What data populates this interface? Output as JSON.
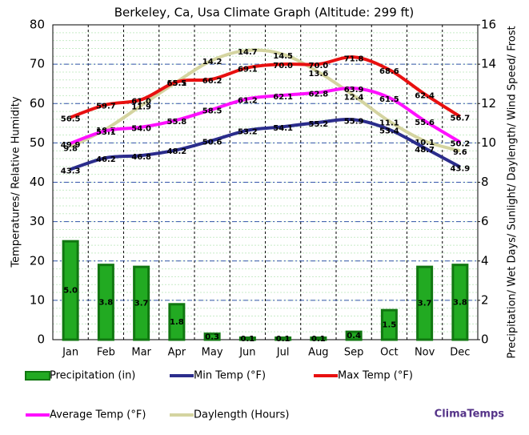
{
  "chart_data": {
    "type": "combo",
    "title": "Berkeley, Ca, Usa Climate Graph (Altitude: 299 ft)",
    "y_label": "Temperatures/ Relative Humidity",
    "y2_label": "Precipitation/ Wet Days/ Sunlight/ Daylength/ Wind Speed/ Frost",
    "source": "ClimaTemps",
    "categories": [
      "Jan",
      "Feb",
      "Mar",
      "Apr",
      "May",
      "Jun",
      "Jul",
      "Aug",
      "Sep",
      "Oct",
      "Nov",
      "Dec"
    ],
    "ylim": [
      0,
      80
    ],
    "yticks": [
      0,
      10,
      20,
      30,
      40,
      50,
      60,
      70,
      80
    ],
    "y2lim": [
      0,
      16
    ],
    "y2ticks": [
      0,
      2,
      4,
      6,
      8,
      10,
      12,
      14,
      16
    ],
    "grid": true,
    "series": [
      {
        "name": "Precipitation (in)",
        "type": "bar",
        "axis": "y2",
        "color": "#22aa22",
        "values": [
          5.0,
          3.8,
          3.7,
          1.8,
          0.3,
          0.1,
          0.1,
          0.1,
          0.4,
          1.5,
          3.7,
          3.8
        ],
        "value_labels": [
          "5.0",
          "3.8",
          "3.7",
          "1.8",
          "0.3",
          "0.1",
          "0.1",
          "0.1",
          "0.4",
          "1.5",
          "3.7",
          "3.8"
        ]
      },
      {
        "name": "Min Temp (°F)",
        "type": "line",
        "axis": "y",
        "color": "#2b2d8c",
        "values": [
          43.3,
          46.2,
          46.8,
          48.2,
          50.6,
          53.2,
          54.1,
          55.2,
          55.9,
          53.4,
          48.7,
          43.9
        ],
        "value_labels": [
          "43.3",
          "46.2",
          "46.8",
          "48.2",
          "50.6",
          "53.2",
          "54.1",
          "55.2",
          "55.9",
          "53.4",
          "48.7",
          "43.9"
        ]
      },
      {
        "name": "Max Temp (°F)",
        "type": "line",
        "axis": "y",
        "color": "#e81010",
        "values": [
          56.5,
          59.7,
          61.0,
          65.5,
          66.2,
          69.1,
          70.0,
          70.0,
          71.8,
          68.6,
          62.4,
          56.7
        ],
        "value_labels": [
          "56.5",
          "59.7",
          "61.0",
          "65.5",
          "66.2",
          "69.1",
          "70.0",
          "70.0",
          "71.8",
          "68.6",
          "62.4",
          "56.7"
        ]
      },
      {
        "name": "Average Temp (°F)",
        "type": "line",
        "axis": "y",
        "color": "#ff10ff",
        "values": [
          49.9,
          53.1,
          54.0,
          55.8,
          58.5,
          61.2,
          62.1,
          62.8,
          63.9,
          61.5,
          55.6,
          50.2
        ],
        "value_labels": [
          "49.9",
          "53.1",
          "54.0",
          "55.8",
          "58.5",
          "61.2",
          "62.1",
          "62.8",
          "63.9",
          "61.5",
          "55.6",
          "50.2"
        ]
      },
      {
        "name": "Daylength (Hours)",
        "type": "line",
        "axis": "y2",
        "color": "#d4d4a0",
        "values": [
          9.8,
          10.7,
          11.9,
          13.1,
          14.2,
          14.7,
          14.5,
          13.6,
          12.4,
          11.1,
          10.1,
          9.6
        ],
        "value_labels": [
          "9.8",
          "10.7",
          "11.9",
          "13.1",
          "14.2",
          "14.7",
          "14.5",
          "13.6",
          "12.4",
          "11.1",
          "10.1",
          "9.6"
        ]
      }
    ]
  }
}
